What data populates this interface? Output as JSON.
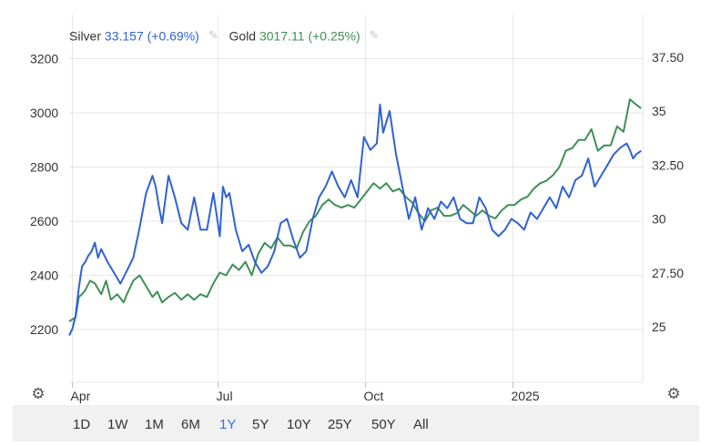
{
  "legend": {
    "silver": {
      "name": "Silver",
      "value": "33.157",
      "change": "(+0.69%)",
      "color": "#2f62d6"
    },
    "gold": {
      "name": "Gold",
      "value": "3017.11",
      "change": "(+0.25%)",
      "color": "#3f8f55"
    }
  },
  "icons": {
    "settings_left": "gear-icon",
    "settings_right": "gear-icon",
    "edit": "pencil-icon"
  },
  "range_buttons": [
    "1D",
    "1W",
    "1M",
    "6M",
    "1Y",
    "5Y",
    "10Y",
    "25Y",
    "50Y",
    "All"
  ],
  "active_range": "1Y",
  "chart_data": {
    "type": "line",
    "title": "",
    "x_ticks": [
      "Apr",
      "Jul",
      "Oct",
      "2025"
    ],
    "x_tick_days": [
      2,
      93,
      185,
      277
    ],
    "x_range_days": [
      0,
      358
    ],
    "left_axis": {
      "series": "Gold",
      "ticks": [
        2200,
        2400,
        2600,
        2800,
        3000,
        3200
      ],
      "range": [
        2000,
        3400
      ]
    },
    "right_axis": {
      "series": "Silver",
      "ticks": [
        "25",
        "27.50",
        "30",
        "32.50",
        "35",
        "37.50"
      ],
      "tick_values": [
        25,
        27.5,
        30,
        32.5,
        35,
        37.5
      ],
      "range": [
        21,
        39
      ]
    },
    "grid": true,
    "legend_position": "top-left",
    "series": [
      {
        "name": "Gold",
        "axis": "left",
        "color": "#3f8f55",
        "x": [
          0,
          4,
          6,
          8,
          10,
          13,
          16,
          18,
          20,
          23,
          26,
          30,
          34,
          36,
          40,
          44,
          48,
          52,
          55,
          58,
          62,
          66,
          70,
          74,
          78,
          82,
          86,
          90,
          94,
          98,
          102,
          106,
          110,
          114,
          118,
          122,
          126,
          130,
          134,
          138,
          142,
          146,
          150,
          154,
          158,
          162,
          166,
          170,
          174,
          178,
          182,
          186,
          190,
          194,
          198,
          202,
          206,
          210,
          214,
          218,
          222,
          226,
          230,
          234,
          238,
          242,
          246,
          250,
          254,
          258,
          262,
          266,
          270,
          274,
          278,
          282,
          286,
          290,
          294,
          298,
          302,
          306,
          310,
          314,
          318,
          322,
          326,
          330,
          334,
          338,
          342,
          346,
          350,
          354,
          357
        ],
        "y": [
          2230,
          2245,
          2320,
          2330,
          2345,
          2380,
          2370,
          2350,
          2330,
          2380,
          2310,
          2330,
          2300,
          2330,
          2380,
          2400,
          2360,
          2320,
          2340,
          2300,
          2320,
          2335,
          2310,
          2330,
          2310,
          2330,
          2320,
          2370,
          2410,
          2400,
          2440,
          2420,
          2450,
          2400,
          2480,
          2520,
          2500,
          2540,
          2510,
          2510,
          2500,
          2560,
          2600,
          2620,
          2660,
          2680,
          2660,
          2650,
          2660,
          2650,
          2680,
          2710,
          2740,
          2720,
          2740,
          2710,
          2720,
          2690,
          2670,
          2630,
          2600,
          2640,
          2650,
          2620,
          2620,
          2630,
          2660,
          2640,
          2620,
          2640,
          2620,
          2610,
          2640,
          2660,
          2660,
          2680,
          2690,
          2720,
          2740,
          2750,
          2770,
          2800,
          2860,
          2870,
          2900,
          2900,
          2940,
          2860,
          2880,
          2880,
          2950,
          2930,
          3050,
          3030,
          3017
        ]
      },
      {
        "name": "Silver",
        "axis": "right",
        "color": "#2f62d6",
        "x": [
          0,
          2,
          4,
          6,
          8,
          10,
          12,
          14,
          16,
          18,
          20,
          24,
          28,
          32,
          36,
          40,
          44,
          48,
          52,
          54,
          56,
          58,
          62,
          66,
          70,
          74,
          78,
          82,
          86,
          90,
          94,
          96,
          98,
          100,
          104,
          108,
          112,
          116,
          120,
          124,
          128,
          132,
          136,
          140,
          144,
          148,
          152,
          156,
          160,
          164,
          168,
          172,
          176,
          180,
          184,
          188,
          192,
          194,
          196,
          198,
          200,
          204,
          208,
          212,
          216,
          220,
          224,
          228,
          232,
          236,
          240,
          244,
          248,
          252,
          256,
          260,
          264,
          268,
          272,
          276,
          280,
          284,
          288,
          292,
          296,
          300,
          304,
          308,
          312,
          316,
          320,
          324,
          328,
          332,
          336,
          340,
          344,
          348,
          350,
          352,
          354,
          356,
          357
        ],
        "y": [
          24.6,
          24.9,
          25.5,
          26.8,
          27.8,
          28.0,
          28.3,
          28.5,
          28.9,
          28.2,
          28.6,
          28.0,
          27.5,
          27.0,
          27.6,
          28.2,
          29.6,
          31.2,
          32.0,
          31.5,
          30.6,
          29.8,
          32.0,
          31.0,
          29.8,
          29.5,
          31.0,
          29.5,
          29.5,
          31.2,
          29.2,
          31.5,
          31.0,
          31.2,
          29.5,
          28.5,
          28.8,
          28.0,
          27.5,
          27.8,
          28.5,
          29.8,
          30.0,
          29.0,
          28.2,
          28.5,
          30.0,
          31.0,
          31.5,
          32.2,
          31.5,
          31.0,
          31.8,
          31.0,
          33.8,
          33.2,
          33.5,
          35.3,
          34.0,
          34.5,
          35.0,
          33.0,
          31.5,
          30.0,
          31.0,
          29.5,
          30.5,
          30.0,
          30.8,
          30.5,
          31.0,
          30.0,
          29.8,
          29.8,
          31.0,
          30.5,
          29.5,
          29.2,
          29.5,
          30.0,
          29.8,
          29.5,
          30.3,
          30.0,
          30.5,
          31.0,
          30.5,
          31.5,
          31.0,
          31.8,
          32.0,
          32.8,
          31.5,
          32.0,
          32.5,
          33.0,
          33.3,
          33.5,
          33.2,
          32.8,
          33.0,
          33.1,
          33.157
        ]
      }
    ]
  }
}
